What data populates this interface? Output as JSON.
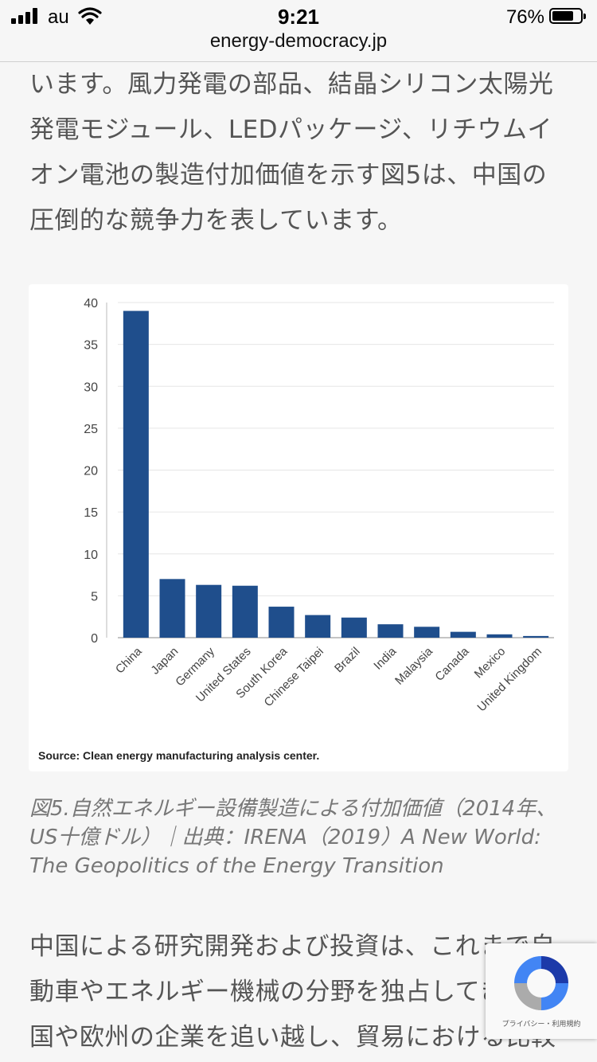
{
  "status_bar": {
    "carrier": "au",
    "time": "9:21",
    "battery": "76%"
  },
  "browser": {
    "url": "energy-democracy.jp"
  },
  "article": {
    "paragraph1": "います。風力発電の部品、結晶シリコン太陽光発電モジュール、LEDパッケージ、リチウムイオン電池の製造付加価値を示す図5は、中国の圧倒的な競争力を表しています。",
    "caption": "図5.自然エネルギー設備製造による付加価値（2014年、US十億ドル）｜出典：IRENA（2019）A New World: The Geopolitics of the Energy Transition",
    "paragraph2": "中国による研究開発および投資は、これまで自動車やエネルギー機械の分野を独占してきた米国や欧州の企業を追い越し、貿易における比較"
  },
  "chart_data": {
    "type": "bar",
    "categories": [
      "China",
      "Japan",
      "Germany",
      "United States",
      "South Korea",
      "Chinese Taipei",
      "Brazil",
      "India",
      "Malaysia",
      "Canada",
      "Mexico",
      "United Kingdom"
    ],
    "values": [
      39,
      7,
      6.3,
      6.2,
      3.7,
      2.7,
      2.4,
      1.6,
      1.3,
      0.7,
      0.4,
      0.2
    ],
    "yticks": [
      "0",
      "5",
      "10",
      "15",
      "20",
      "25",
      "30",
      "35",
      "40"
    ],
    "ylim": [
      0,
      40
    ],
    "grid": true,
    "bar_color": "#1f4e8c",
    "source": "Source: Clean energy manufacturing analysis center."
  },
  "recaptcha": {
    "terms": "プライバシー・利用規約"
  }
}
